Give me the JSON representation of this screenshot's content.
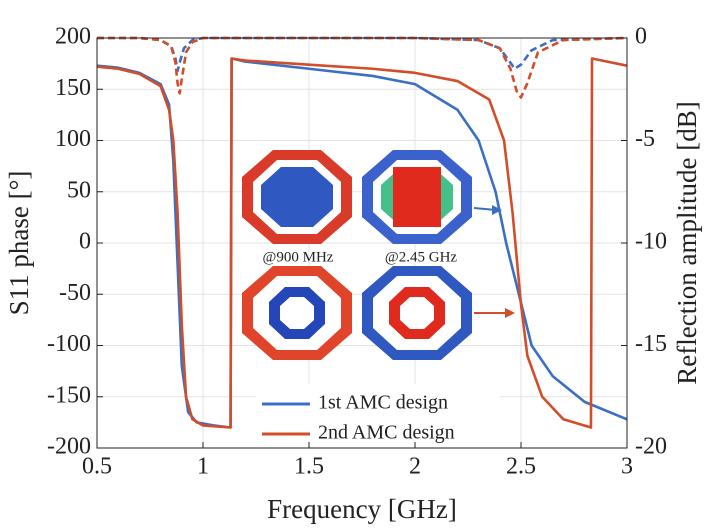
{
  "chart_data": {
    "type": "line",
    "xlabel": "Frequency [GHz]",
    "ylabel": "S11 phase [°]",
    "y2label": "Reflection amplitude [dB]",
    "xlim": [
      0.5,
      3
    ],
    "xticks": [
      0.5,
      1,
      1.5,
      2,
      2.5,
      3
    ],
    "ylim": [
      -200,
      200
    ],
    "yticks": [
      -200,
      -150,
      -100,
      -50,
      0,
      50,
      100,
      150,
      200
    ],
    "y2lim": [
      -20,
      0
    ],
    "y2ticks": [
      -20,
      -15,
      -10,
      -5,
      0
    ],
    "grid": true,
    "legend": "bottom",
    "annotations": [
      "@900 MHz",
      "@2.45 GHz"
    ],
    "series": [
      {
        "name": "1st AMC design",
        "color": "#3a6fc4",
        "style": "solid",
        "x": [
          0.5,
          0.6,
          0.7,
          0.8,
          0.84,
          0.86,
          0.88,
          0.9,
          0.93,
          0.97,
          1.05,
          1.13,
          1.135,
          1.2,
          1.5,
          1.8,
          2.0,
          2.2,
          2.3,
          2.38,
          2.43,
          2.49,
          2.55,
          2.65,
          2.8,
          3.0
        ],
        "values": [
          173,
          171,
          166,
          155,
          135,
          80,
          -20,
          -120,
          -165,
          -175,
          -178,
          -180,
          180,
          177,
          170,
          163,
          155,
          130,
          100,
          50,
          0,
          -50,
          -100,
          -130,
          -155,
          -172
        ]
      },
      {
        "name": "2nd AMC design",
        "color": "#d24e2a",
        "style": "solid",
        "x": [
          0.5,
          0.6,
          0.7,
          0.8,
          0.84,
          0.86,
          0.88,
          0.9,
          0.92,
          0.95,
          1.0,
          1.13,
          1.135,
          1.2,
          1.5,
          1.8,
          2.0,
          2.2,
          2.35,
          2.42,
          2.46,
          2.5,
          2.53,
          2.6,
          2.7,
          2.83,
          2.835,
          3.0
        ],
        "values": [
          172,
          170,
          165,
          153,
          130,
          100,
          30,
          -80,
          -150,
          -172,
          -178,
          -180,
          180,
          178,
          174,
          170,
          166,
          158,
          140,
          100,
          30,
          -60,
          -110,
          -150,
          -172,
          -180,
          180,
          173
        ]
      },
      {
        "color": "#3a6fc4",
        "style": "dashed",
        "axis": "y2",
        "x": [
          0.5,
          0.7,
          0.8,
          0.85,
          0.87,
          0.88,
          0.89,
          0.91,
          0.95,
          1.0,
          1.5,
          2.0,
          2.3,
          2.4,
          2.45,
          2.47,
          2.5,
          2.55,
          2.65,
          3.0
        ],
        "values": [
          0,
          0,
          -0.1,
          -0.4,
          -1,
          -1.6,
          -1.2,
          -0.5,
          -0.1,
          0,
          0,
          0,
          -0.1,
          -0.5,
          -1.2,
          -1.5,
          -1.3,
          -0.6,
          -0.1,
          0
        ]
      },
      {
        "color": "#d24e2a",
        "style": "dashed",
        "axis": "y2",
        "x": [
          0.5,
          0.7,
          0.8,
          0.85,
          0.87,
          0.88,
          0.89,
          0.9,
          0.92,
          0.95,
          1.0,
          1.5,
          2.0,
          2.3,
          2.4,
          2.45,
          2.48,
          2.5,
          2.53,
          2.58,
          2.7,
          3.0
        ],
        "values": [
          0,
          0,
          -0.1,
          -0.4,
          -1.2,
          -2.2,
          -2.7,
          -2.0,
          -0.7,
          -0.2,
          0,
          0,
          0,
          -0.1,
          -0.5,
          -1.5,
          -2.6,
          -2.9,
          -2.2,
          -0.7,
          -0.1,
          0
        ]
      }
    ]
  }
}
